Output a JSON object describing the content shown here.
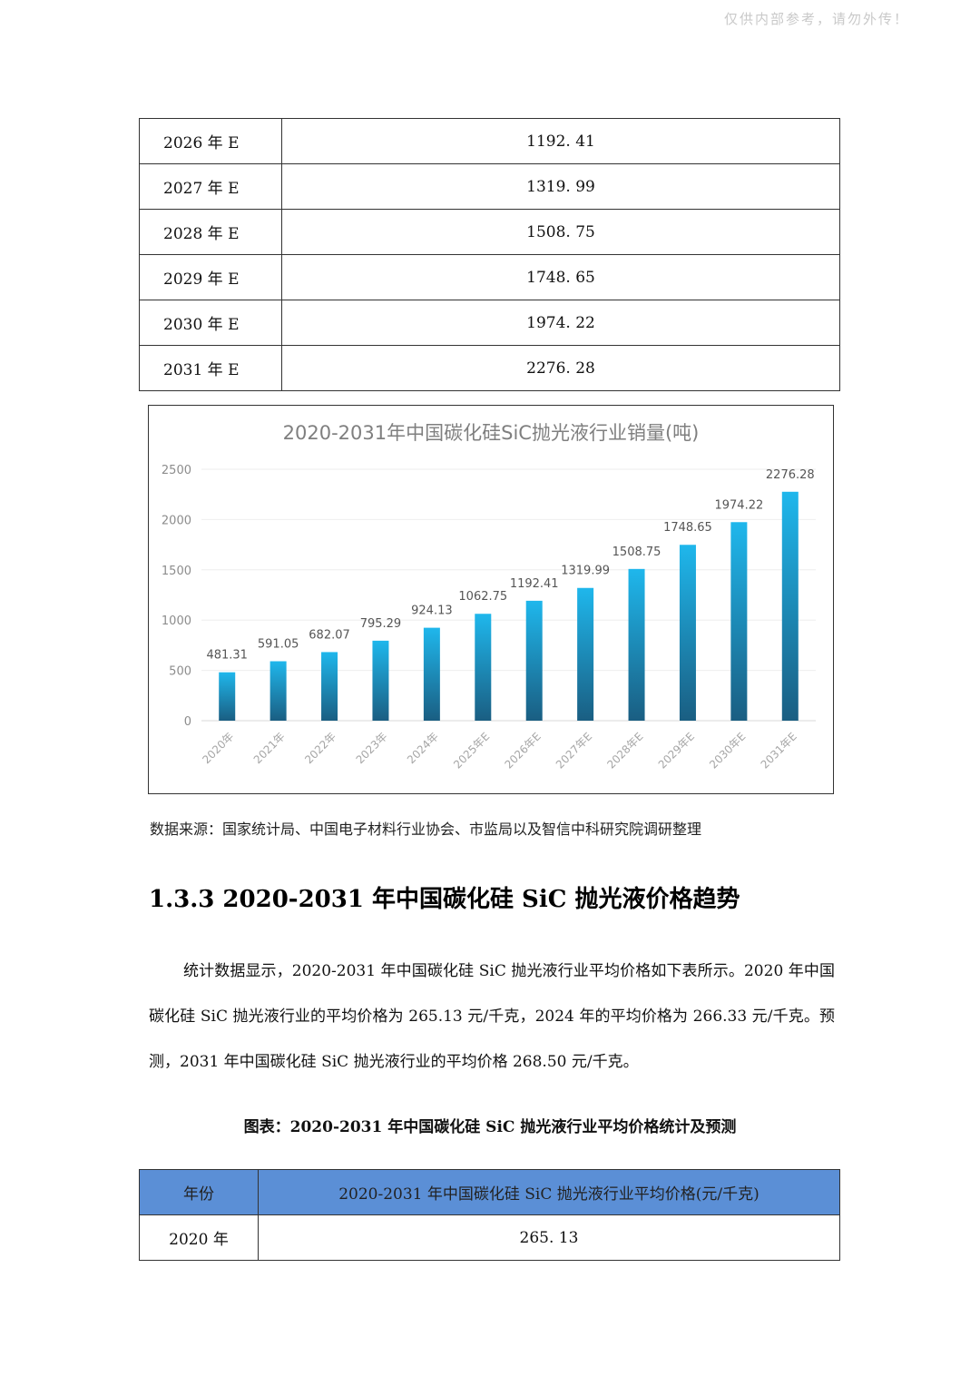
{
  "watermark": "仅供内部参考，请勿外传！",
  "top_table": {
    "rows": [
      {
        "year": "2026 年 E",
        "value": "1192. 41"
      },
      {
        "year": "2027 年 E",
        "value": "1319. 99"
      },
      {
        "year": "2028 年 E",
        "value": "1508. 75"
      },
      {
        "year": "2029 年 E",
        "value": "1748. 65"
      },
      {
        "year": "2030 年 E",
        "value": "1974. 22"
      },
      {
        "year": "2031 年 E",
        "value": "2276. 28"
      }
    ]
  },
  "chart_data": {
    "type": "bar",
    "title": "2020-2031年中国碳化硅SiC抛光液行业销量(吨)",
    "categories": [
      "2020年",
      "2021年",
      "2022年",
      "2023年",
      "2024年",
      "2025年E",
      "2026年E",
      "2027年E",
      "2028年E",
      "2029年E",
      "2030年E",
      "2031年E"
    ],
    "values": [
      481.31,
      591.05,
      682.07,
      795.29,
      924.13,
      1062.75,
      1192.41,
      1319.99,
      1508.75,
      1748.65,
      1974.22,
      2276.28
    ],
    "value_labels": [
      "481.31",
      "591.05",
      "682.07",
      "795.29",
      "924.13",
      "1062.75",
      "1192.41",
      "1319.99",
      "1508.75",
      "1748.65",
      "1974.22",
      "2276.28"
    ],
    "yticks": [
      "0",
      "500",
      "1000",
      "1500",
      "2000",
      "2500"
    ],
    "ylim": [
      0,
      2500
    ],
    "xlabel": "",
    "ylabel": "",
    "grid": true,
    "legend": "none",
    "bar_color_top": "#1fb7ec",
    "bar_color_bottom": "#1a5e82"
  },
  "source_text": "数据来源：国家统计局、中国电子材料行业协会、市监局以及智信中科研究院调研整理",
  "section_heading": "1.3.3 2020-2031 年中国碳化硅 SiC 抛光液价格趋势",
  "body_paragraph": "统计数据显示，2020-2031 年中国碳化硅 SiC 抛光液行业平均价格如下表所示。2020 年中国碳化硅 SiC 抛光液行业的平均价格为 265.13 元/千克，2024 年的平均价格为 266.33 元/千克。预测，2031 年中国碳化硅 SiC 抛光液行业的平均价格 268.50 元/千克。",
  "figure_caption": "图表：2020-2031 年中国碳化硅 SiC 抛光液行业平均价格统计及预测",
  "bottom_table": {
    "header_year": "年份",
    "header_value": "2020-2031 年中国碳化硅 SiC 抛光液行业平均价格(元/千克)",
    "header_color": "#5b8fd6",
    "rows": [
      {
        "year": "2020 年",
        "value": "265. 13"
      }
    ]
  }
}
